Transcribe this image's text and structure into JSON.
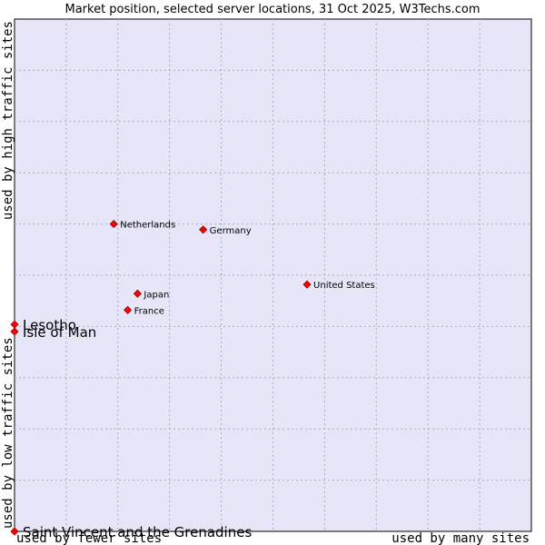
{
  "chart_data": {
    "type": "scatter",
    "title": "Market position, selected server locations, 31 Oct 2025, W3Techs.com",
    "xlabel_left": "used by fewer sites",
    "xlabel_right": "used by many sites",
    "ylabel_bottom": "used by low traffic sites",
    "ylabel_top": "used by high traffic sites",
    "xlim": [
      0,
      100
    ],
    "ylim": [
      0,
      100
    ],
    "grid": true,
    "colors": {
      "plot_bg": "#e6e6f8",
      "grid": "#aaaacc",
      "point": "#ff0000",
      "point_stroke": "#990000"
    },
    "points": [
      {
        "label": "Netherlands",
        "x": 19.2,
        "y": 60.0,
        "size": "small"
      },
      {
        "label": "Germany",
        "x": 36.5,
        "y": 58.9,
        "size": "small"
      },
      {
        "label": "United States",
        "x": 56.6,
        "y": 48.2,
        "size": "small"
      },
      {
        "label": "Japan",
        "x": 23.8,
        "y": 46.4,
        "size": "small"
      },
      {
        "label": "France",
        "x": 21.9,
        "y": 43.2,
        "size": "small"
      },
      {
        "label": "Lesotho",
        "x": 0.0,
        "y": 40.4,
        "size": "large"
      },
      {
        "label": "Isle of Man",
        "x": 0.0,
        "y": 39.0,
        "size": "large"
      },
      {
        "label": "Saint Vincent and the Grenadines",
        "x": 0.0,
        "y": 0.0,
        "size": "large"
      }
    ]
  }
}
